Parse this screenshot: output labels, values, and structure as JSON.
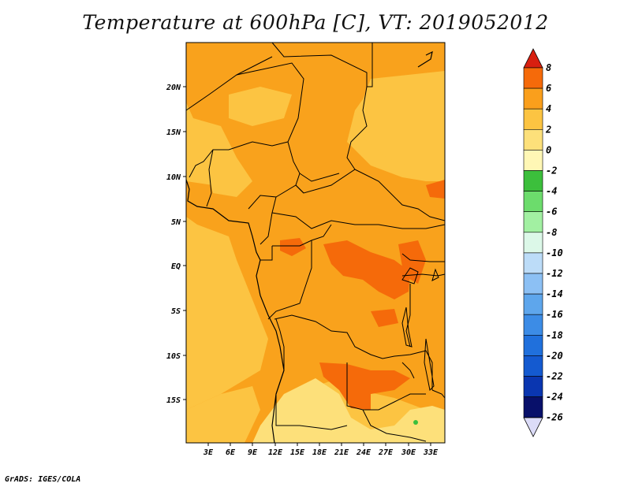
{
  "title": "Temperature at 600hPa [C], VT: 2019052012",
  "credit": "GrADS: IGES/COLA",
  "map": {
    "lat_labels": [
      "20N",
      "15N",
      "10N",
      "5N",
      "EQ",
      "5S",
      "10S",
      "15S"
    ],
    "lon_labels": [
      "3E",
      "6E",
      "9E",
      "12E",
      "15E",
      "18E",
      "21E",
      "24E",
      "27E",
      "30E",
      "33E"
    ]
  },
  "colorbar": {
    "labels": [
      "8",
      "6",
      "4",
      "2",
      "0",
      "-2",
      "-4",
      "-6",
      "-8",
      "-10",
      "-12",
      "-14",
      "-16",
      "-18",
      "-20",
      "-22",
      "-24",
      "-26"
    ],
    "colors": [
      "#f03a16",
      "#f56a0a",
      "#fa9f1c",
      "#fcc442",
      "#fde07a",
      "#fff7b5",
      "#3cbf3c",
      "#6cdc6c",
      "#a2f0a2",
      "#dcf8e8",
      "#bcdcf8",
      "#8cc0f4",
      "#5ea6ec",
      "#3c8ce6",
      "#2070dc",
      "#145ad0",
      "#0a36b0",
      "#08106a"
    ],
    "top_arrow_color": "#d82010",
    "bottom_arrow_color": "#dcdcf8"
  }
}
